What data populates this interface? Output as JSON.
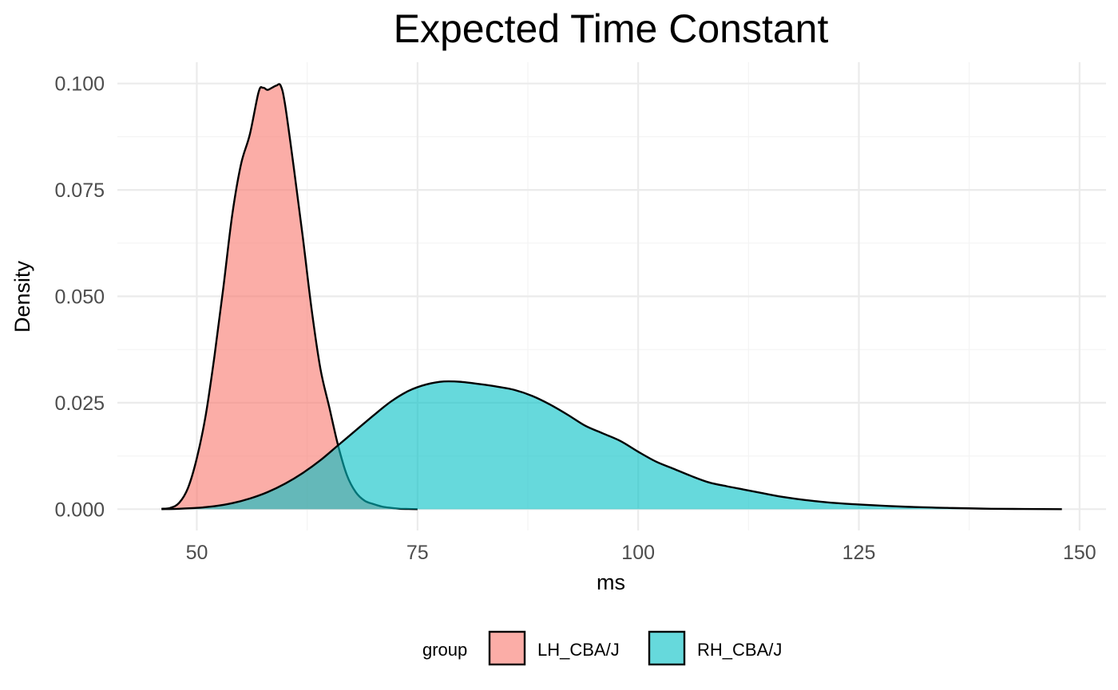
{
  "chart_data": {
    "type": "area",
    "title": "Expected Time Constant",
    "xlabel": "ms",
    "ylabel": "Density",
    "xlim": [
      41,
      153
    ],
    "ylim": [
      -0.005,
      0.105
    ],
    "x_ticks": [
      50,
      75,
      100,
      125,
      150
    ],
    "x_tick_labels": [
      "50",
      "75",
      "100",
      "125",
      "150"
    ],
    "y_ticks": [
      0.0,
      0.025,
      0.05,
      0.075,
      0.1
    ],
    "y_tick_labels": [
      "0.000",
      "0.025",
      "0.050",
      "0.075",
      "0.100"
    ],
    "grid": true,
    "legend": {
      "title": "group",
      "position": "bottom"
    },
    "series": [
      {
        "name": "LH_CBA/J",
        "color": "#F8766D",
        "x": [
          46,
          47,
          48,
          49,
          50,
          51,
          52,
          53,
          54,
          55,
          56,
          57,
          57.5,
          58,
          58.5,
          59,
          59.5,
          60,
          61,
          62,
          63,
          64,
          65,
          66,
          67,
          68,
          69,
          70,
          71,
          72,
          73,
          74,
          75
        ],
        "y": [
          0.0001,
          0.0003,
          0.0015,
          0.005,
          0.012,
          0.022,
          0.036,
          0.052,
          0.069,
          0.081,
          0.088,
          0.098,
          0.099,
          0.0985,
          0.099,
          0.0995,
          0.0995,
          0.095,
          0.08,
          0.064,
          0.047,
          0.033,
          0.024,
          0.015,
          0.008,
          0.004,
          0.002,
          0.0012,
          0.0006,
          0.0003,
          0.0001,
          5e-05,
          0.0
        ]
      },
      {
        "name": "RH_CBA/J",
        "color": "#00BFC4",
        "x": [
          46,
          48,
          50,
          52,
          54,
          56,
          58,
          60,
          62,
          64,
          66,
          68,
          70,
          72,
          74,
          76,
          78,
          80,
          82,
          84,
          86,
          88,
          90,
          92,
          94,
          96,
          98,
          100,
          102,
          104,
          106,
          108,
          110,
          112,
          114,
          116,
          118,
          120,
          122,
          125,
          130,
          135,
          140,
          148
        ],
        "y": [
          0.0,
          0.0001,
          0.0003,
          0.0007,
          0.0014,
          0.0025,
          0.004,
          0.006,
          0.0085,
          0.0115,
          0.015,
          0.0185,
          0.022,
          0.0253,
          0.0278,
          0.0293,
          0.03,
          0.0299,
          0.0294,
          0.0288,
          0.028,
          0.0266,
          0.0246,
          0.0222,
          0.0196,
          0.0178,
          0.016,
          0.0135,
          0.0112,
          0.0095,
          0.0078,
          0.0063,
          0.0054,
          0.0046,
          0.0038,
          0.003,
          0.0024,
          0.0019,
          0.0015,
          0.0011,
          0.0006,
          0.0003,
          0.0001,
          0.0
        ]
      }
    ]
  }
}
